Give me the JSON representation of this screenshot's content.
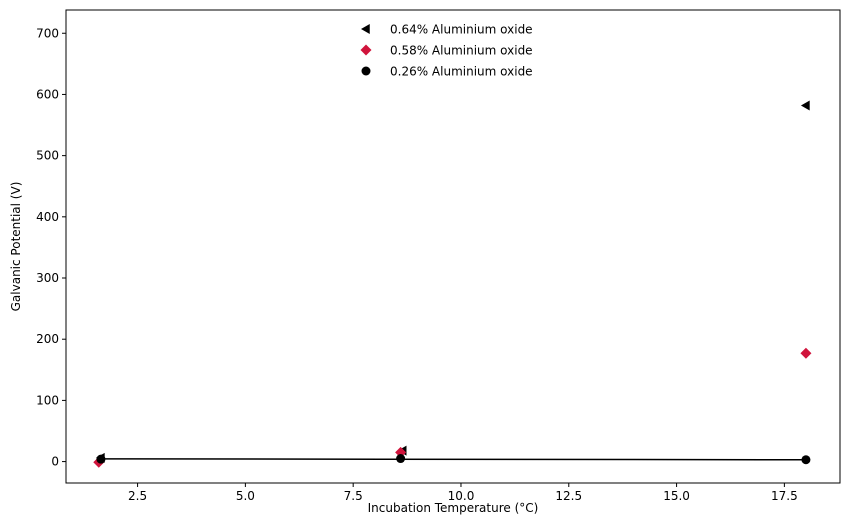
{
  "chart_data": {
    "type": "scatter",
    "title": "",
    "xlabel": "Incubation Temperature (°C)",
    "ylabel": "Galvanic Potential (V)",
    "xlim": [
      0.84,
      18.79
    ],
    "ylim": [
      -35,
      738
    ],
    "xticks": [
      2.5,
      5.0,
      7.5,
      10.0,
      12.5,
      15.0,
      17.5
    ],
    "xtick_labels": [
      "2.5",
      "5.0",
      "7.5",
      "10.0",
      "12.5",
      "15.0",
      "17.5"
    ],
    "yticks": [
      0,
      100,
      200,
      300,
      400,
      500,
      600,
      700
    ],
    "ytick_labels": [
      "0",
      "100",
      "200",
      "300",
      "400",
      "500",
      "600",
      "700"
    ],
    "grid": false,
    "legend_position": "top-center",
    "series": [
      {
        "name": "0.64% Aluminium oxide",
        "marker": "triangle-left",
        "color": "#000000",
        "x": [
          1.65,
          8.65,
          18.0
        ],
        "y": [
          6,
          18,
          582
        ]
      },
      {
        "name": "0.58% Aluminium oxide",
        "marker": "diamond",
        "color": "#d0143c",
        "x": [
          1.6,
          8.6,
          18.0
        ],
        "y": [
          -1,
          15,
          177
        ]
      },
      {
        "name": "0.26% Aluminium oxide",
        "marker": "circle",
        "color": "#000000",
        "x": [
          1.65,
          8.6,
          18.0
        ],
        "y": [
          4,
          5,
          3
        ]
      }
    ],
    "fit_line": {
      "color": "#000000",
      "x": [
        1.65,
        18.0
      ],
      "y": [
        4.5,
        3.0
      ]
    }
  }
}
